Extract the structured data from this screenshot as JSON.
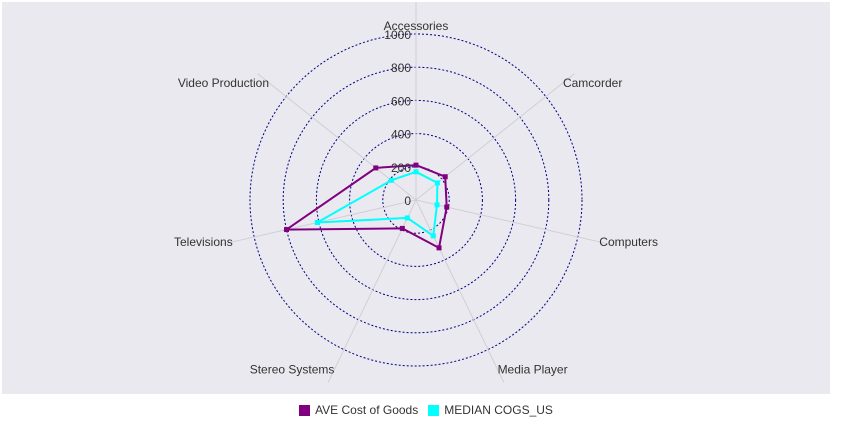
{
  "chart_data": {
    "type": "radar",
    "categories": [
      "Accessories",
      "Camcorder",
      "Computers",
      "Media Player",
      "Stereo Systems",
      "Televisions",
      "Video Production"
    ],
    "radial_ticks": [
      0,
      200,
      400,
      600,
      800,
      1000
    ],
    "rlim": [
      0,
      1000
    ],
    "series": [
      {
        "name": "AVE Cost of Goods",
        "color": "#800080",
        "values": [
          210,
          225,
          190,
          320,
          190,
          800,
          310
        ]
      },
      {
        "name": "MEDIAN COGS_US",
        "color": "#00ffff",
        "values": [
          170,
          165,
          130,
          240,
          120,
          610,
          190
        ]
      }
    ],
    "grid_color": "#000080",
    "legend_position": "bottom"
  }
}
